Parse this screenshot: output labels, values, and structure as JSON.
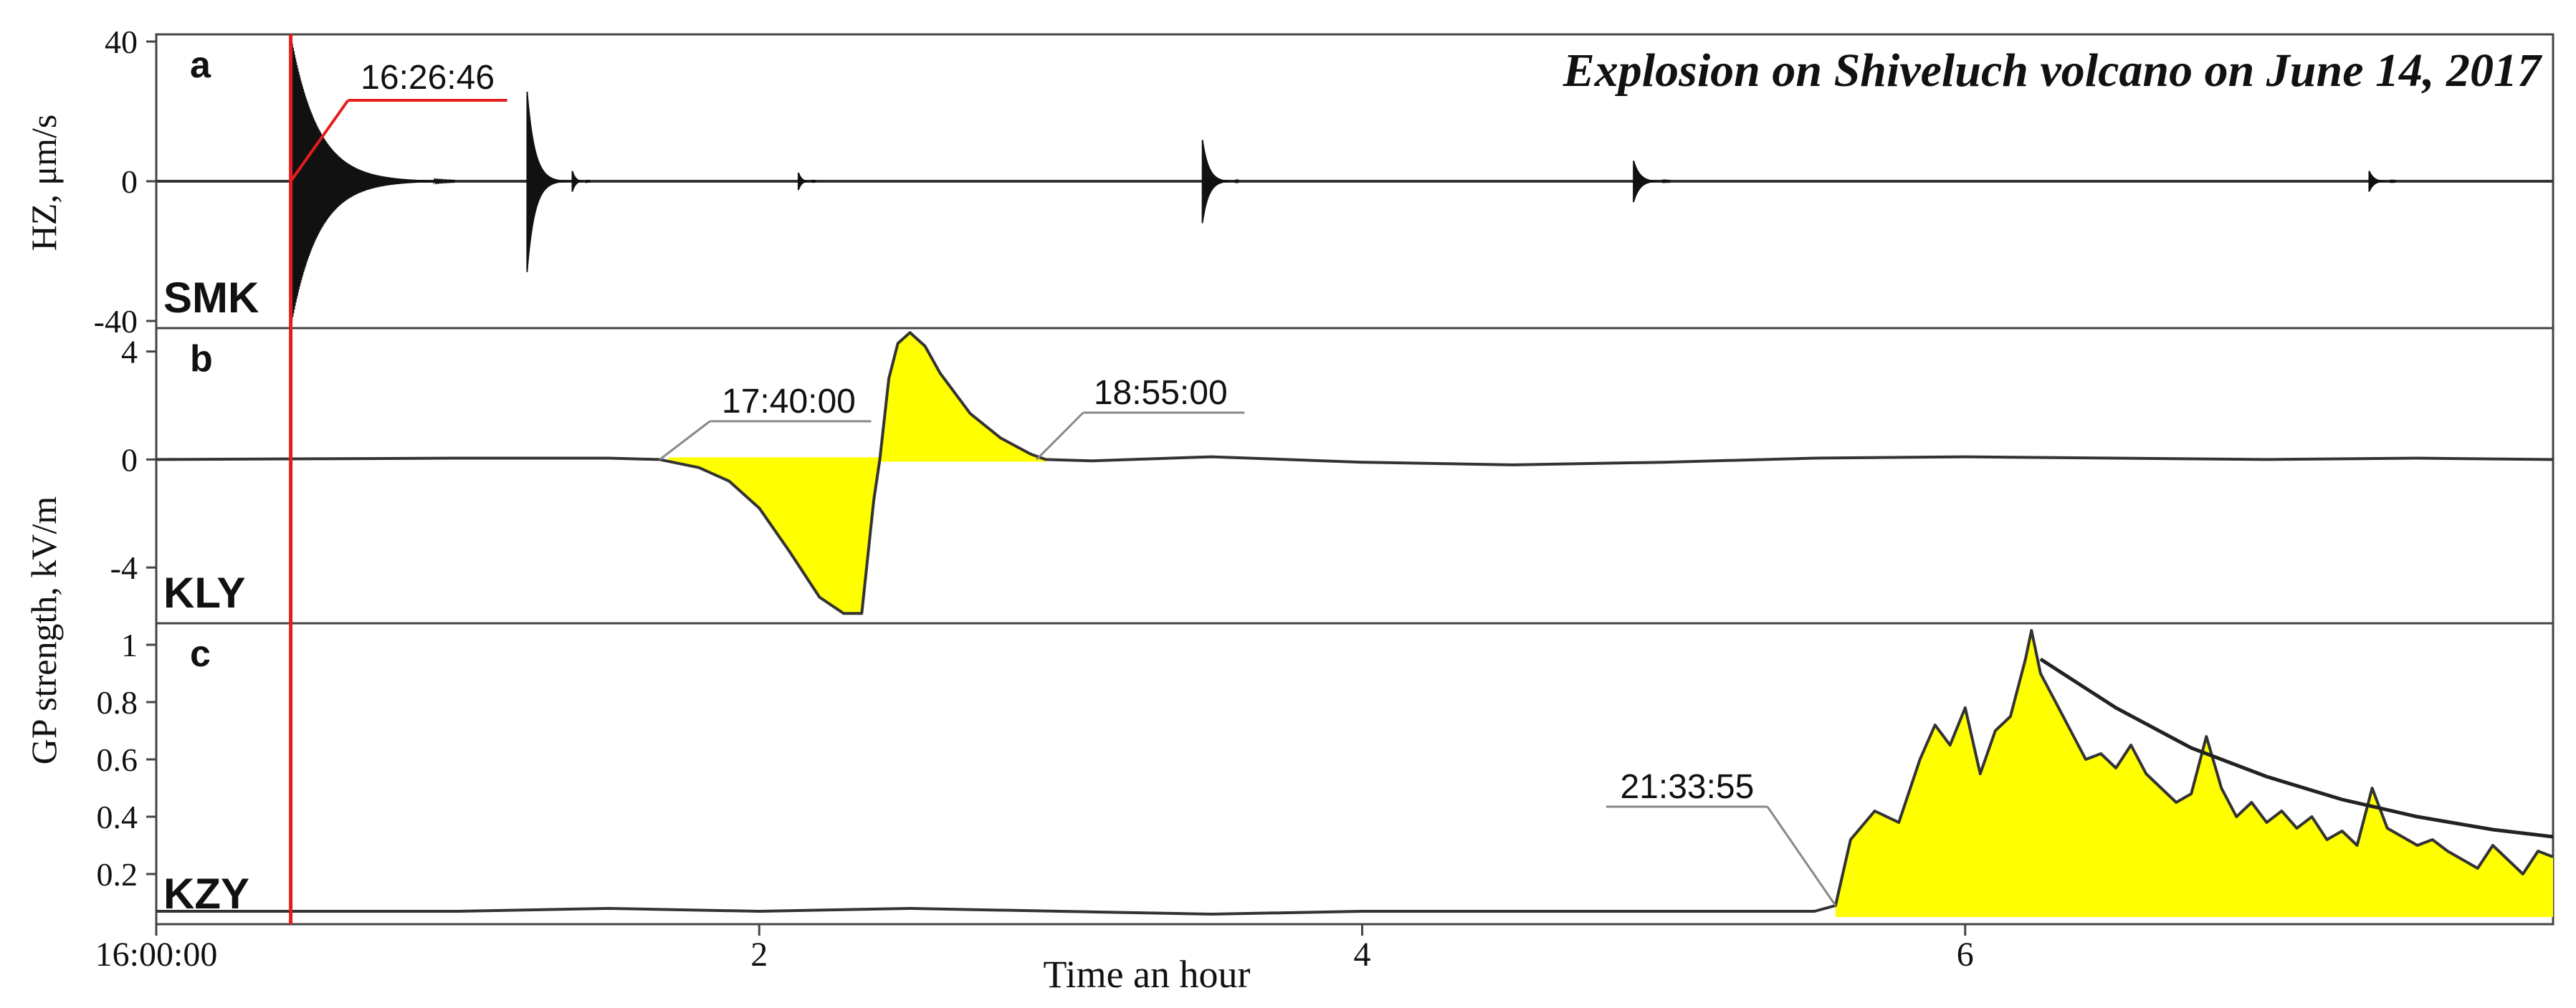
{
  "title": "Explosion on Shiveluch volcano on June 14, 2017",
  "colors": {
    "fill": "#ffff00",
    "marker": "#e41e1e",
    "trace": "#333333",
    "axis": "#444444",
    "callout": "#888888"
  },
  "x_axis": {
    "label": "Time an hour",
    "ticks": [
      {
        "value": 0,
        "label": "16:00:00"
      },
      {
        "value": 2,
        "label": "2"
      },
      {
        "value": 4,
        "label": "4"
      },
      {
        "value": 6,
        "label": "6"
      }
    ]
  },
  "y_axis_labels": {
    "panel_a": "HZ, μm/s",
    "panels_bc": "GP strength,  kV/m"
  },
  "chart_data": [
    {
      "type": "line",
      "panel": "a",
      "station": "SMK",
      "xlim": [
        0,
        7.95
      ],
      "ylim": [
        -40,
        40
      ],
      "yticks": [
        {
          "value": 40,
          "label": "40"
        },
        {
          "value": 0,
          "label": "0"
        },
        {
          "value": -40,
          "label": "-40"
        }
      ],
      "annotations": [
        {
          "label": "16:26:46",
          "x": 0.446
        }
      ],
      "bursts": [
        {
          "x": 0.45,
          "amp": 40,
          "decay": 0.09
        },
        {
          "x": 1.23,
          "amp": 26,
          "decay": 0.025
        },
        {
          "x": 1.38,
          "amp": 3,
          "decay": 0.01
        },
        {
          "x": 2.13,
          "amp": 2.5,
          "decay": 0.01
        },
        {
          "x": 3.47,
          "amp": 12,
          "decay": 0.02
        },
        {
          "x": 4.9,
          "amp": 6,
          "decay": 0.02
        },
        {
          "x": 7.34,
          "amp": 3,
          "decay": 0.015
        }
      ]
    },
    {
      "type": "area",
      "panel": "b",
      "station": "KLY",
      "xlim": [
        0,
        7.95
      ],
      "ylim": [
        -5.8,
        4.6
      ],
      "yticks": [
        {
          "value": 4,
          "label": "4"
        },
        {
          "value": 0,
          "label": "0"
        },
        {
          "value": -4,
          "label": "-4"
        }
      ],
      "annotations": [
        {
          "label": "17:40:00",
          "x": 1.67
        },
        {
          "label": "18:55:00",
          "x": 2.92
        }
      ],
      "fill_range": [
        1.7,
        2.95
      ],
      "x": [
        0,
        1.0,
        1.5,
        1.67,
        1.8,
        1.9,
        2.0,
        2.1,
        2.2,
        2.28,
        2.34,
        2.38,
        2.4,
        2.43,
        2.46,
        2.5,
        2.55,
        2.6,
        2.7,
        2.8,
        2.9,
        2.95,
        3.1,
        3.5,
        4.0,
        4.5,
        5.0,
        5.5,
        6.0,
        6.5,
        7.0,
        7.5,
        7.95
      ],
      "y": [
        0,
        0.05,
        0.05,
        0,
        -0.3,
        -0.8,
        -1.8,
        -3.4,
        -5.1,
        -5.7,
        -5.7,
        -1.5,
        0,
        3.0,
        4.3,
        4.7,
        4.2,
        3.2,
        1.7,
        0.8,
        0.2,
        0,
        -0.05,
        0.1,
        -0.1,
        -0.2,
        -0.1,
        0.05,
        0.1,
        0.05,
        0,
        0.05,
        0
      ]
    },
    {
      "type": "area",
      "panel": "c",
      "station": "KZY",
      "xlim": [
        0,
        7.95
      ],
      "ylim": [
        0.05,
        1.05
      ],
      "yticks": [
        {
          "value": 1,
          "label": "1"
        },
        {
          "value": 0.8,
          "label": "0.8"
        },
        {
          "value": 0.6,
          "label": "0.6"
        },
        {
          "value": 0.4,
          "label": "0.4"
        },
        {
          "value": 0.2,
          "label": "0.2"
        }
      ],
      "annotations": [
        {
          "label": "21:33:55",
          "x": 5.57
        }
      ],
      "fill_range": [
        5.57,
        7.95
      ],
      "x": [
        0,
        1.0,
        1.5,
        2.0,
        2.5,
        3.0,
        3.5,
        4.0,
        4.5,
        5.0,
        5.5,
        5.57,
        5.62,
        5.7,
        5.78,
        5.85,
        5.9,
        5.95,
        6.0,
        6.05,
        6.1,
        6.15,
        6.2,
        6.22,
        6.25,
        6.3,
        6.35,
        6.4,
        6.45,
        6.5,
        6.55,
        6.6,
        6.65,
        6.7,
        6.75,
        6.8,
        6.85,
        6.9,
        6.95,
        7.0,
        7.05,
        7.1,
        7.15,
        7.2,
        7.25,
        7.3,
        7.35,
        7.4,
        7.45,
        7.5,
        7.55,
        7.6,
        7.65,
        7.7,
        7.75,
        7.8,
        7.85,
        7.9,
        7.95
      ],
      "y": [
        0.07,
        0.07,
        0.08,
        0.07,
        0.08,
        0.07,
        0.06,
        0.07,
        0.07,
        0.07,
        0.07,
        0.09,
        0.32,
        0.42,
        0.38,
        0.6,
        0.72,
        0.65,
        0.78,
        0.55,
        0.7,
        0.75,
        0.95,
        1.05,
        0.9,
        0.8,
        0.7,
        0.6,
        0.62,
        0.57,
        0.65,
        0.55,
        0.5,
        0.45,
        0.48,
        0.68,
        0.5,
        0.4,
        0.45,
        0.38,
        0.42,
        0.36,
        0.4,
        0.32,
        0.35,
        0.3,
        0.5,
        0.36,
        0.33,
        0.3,
        0.32,
        0.28,
        0.25,
        0.22,
        0.3,
        0.25,
        0.2,
        0.28,
        0.26
      ],
      "decay_curve": {
        "x": [
          6.25,
          6.5,
          6.75,
          7.0,
          7.25,
          7.5,
          7.75,
          7.95
        ],
        "y": [
          0.95,
          0.78,
          0.64,
          0.54,
          0.46,
          0.4,
          0.355,
          0.33
        ]
      }
    }
  ]
}
